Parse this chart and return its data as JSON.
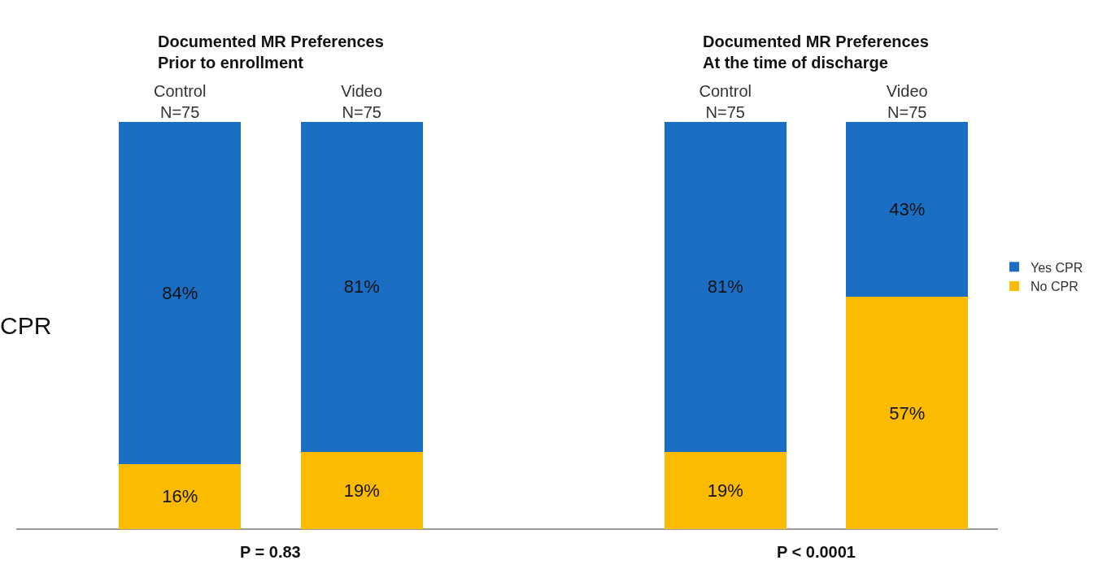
{
  "chart_data": {
    "type": "bar",
    "stacked": true,
    "ylabel": "CPR",
    "categories": [
      "Control\nN=75",
      "Video\nN=75",
      null,
      "Control\nN=75",
      "Video\nN=75"
    ],
    "series": [
      {
        "name": "No CPR",
        "color": "#fbbb00",
        "values": [
          16,
          19,
          null,
          19,
          57
        ],
        "value_labels": [
          "16%",
          "19%",
          null,
          "19%",
          "57%"
        ]
      },
      {
        "name": "Yes CPR",
        "color": "#1a6fc4",
        "values": [
          84,
          81,
          null,
          81,
          43
        ],
        "value_labels": [
          "84%",
          "81%",
          null,
          "81%",
          "43%"
        ]
      }
    ],
    "tick_labels": "x",
    "legend": "right",
    "annotations": [
      "Documented MR Preferences\nPrior to enrollment",
      "Documented MR Preferences\nAt the time of discharge",
      "P = 0.83",
      "P < 0.0001"
    ]
  }
}
